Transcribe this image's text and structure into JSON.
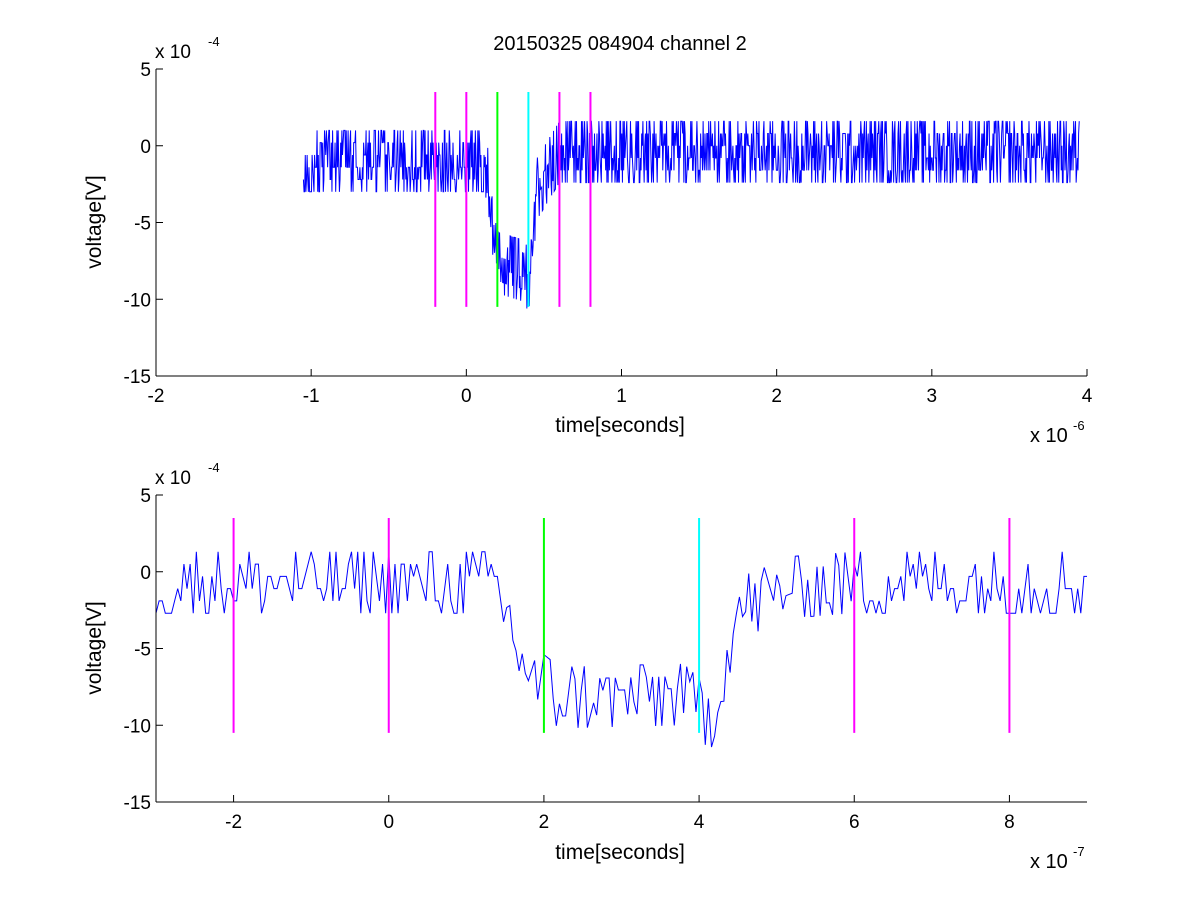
{
  "title": "20150325 084904 channel 2",
  "colors": {
    "signal": "#0000ff",
    "magenta": "#ff00ff",
    "green": "#00ff00",
    "cyan": "#00ffff",
    "axis": "#000000"
  },
  "chart_data": [
    {
      "type": "line",
      "title": "20150325 084904 channel 2",
      "xlabel": "time[seconds]",
      "ylabel": "voltage[V]",
      "x_scale_label": "x 10",
      "x_scale_exp": "-6",
      "y_scale_label": "x 10",
      "y_scale_exp": "-4",
      "x_unit": 1e-06,
      "y_unit": 0.0001,
      "xlim": [
        -2e-06,
        4e-06
      ],
      "ylim": [
        -0.0015,
        0.0005
      ],
      "x_ticks": [
        -2e-06,
        -1e-06,
        0,
        1e-06,
        2e-06,
        3e-06,
        4e-06
      ],
      "x_tick_labels": [
        "-2",
        "-1",
        "0",
        "1",
        "2",
        "3",
        "4"
      ],
      "y_ticks": [
        -0.0015,
        -0.001,
        -0.0005,
        0,
        0.0005
      ],
      "y_tick_labels": [
        "-15",
        "-10",
        "-5",
        "0",
        "5"
      ],
      "grid": false,
      "series": [
        {
          "color": "#0000ff",
          "x_start": -1.05e-06,
          "x_end": 3.95e-06,
          "key_points_x": [
            -1.05e-06,
            1.2e-07,
            1.5e-07,
            1.7e-07,
            2e-07,
            3.8e-07,
            4.1e-07,
            4.5e-07,
            6e-07,
            1e-06,
            3.95e-06
          ],
          "key_points_y": [
            -6e-05,
            -6e-05,
            -0.00025,
            -0.00055,
            -0.00072,
            -0.00078,
            -0.0009,
            -0.00025,
            0,
            0,
            0
          ]
        }
      ],
      "markers": [
        {
          "x": -2e-07,
          "y0": -0.00105,
          "y1": 0.00035,
          "color": "#ff00ff"
        },
        {
          "x": 0,
          "y0": -0.00105,
          "y1": 0.00035,
          "color": "#ff00ff"
        },
        {
          "x": 2e-07,
          "y0": -0.00105,
          "y1": 0.00035,
          "color": "#00ff00"
        },
        {
          "x": 4e-07,
          "y0": -0.00105,
          "y1": 0.00035,
          "color": "#00ffff"
        },
        {
          "x": 6e-07,
          "y0": -0.00105,
          "y1": 0.00035,
          "color": "#ff00ff"
        },
        {
          "x": 8e-07,
          "y0": -0.00105,
          "y1": 0.00035,
          "color": "#ff00ff"
        }
      ]
    },
    {
      "type": "line",
      "title": "",
      "xlabel": "time[seconds]",
      "ylabel": "voltage[V]",
      "x_scale_label": "x 10",
      "x_scale_exp": "-7",
      "y_scale_label": "x 10",
      "y_scale_exp": "-4",
      "x_unit": 1e-07,
      "y_unit": 0.0001,
      "xlim": [
        -3e-07,
        9e-07
      ],
      "ylim": [
        -0.0015,
        0.0005
      ],
      "x_ticks": [
        -2e-07,
        0,
        2e-07,
        4e-07,
        6e-07,
        8e-07
      ],
      "x_tick_labels": [
        "-2",
        "0",
        "2",
        "4",
        "6",
        "8"
      ],
      "y_ticks": [
        -0.0015,
        -0.001,
        -0.0005,
        0,
        0.0005
      ],
      "y_tick_labels": [
        "-15",
        "-10",
        "-5",
        "0",
        "5"
      ],
      "grid": false,
      "series": [
        {
          "color": "#0000ff",
          "x_start": -3e-07,
          "x_end": 9e-07,
          "key_points_x": [
            -3e-07,
            1.4e-07,
            1.5e-07,
            1.65e-07,
            1.8e-07,
            2e-07,
            2.2e-07,
            3.8e-07,
            4.15e-07,
            4.3e-07,
            4.45e-07,
            4.6e-07,
            5.2e-07,
            6e-07,
            9e-07
          ],
          "key_points_y": [
            -3e-05,
            -3e-05,
            -0.0002,
            -0.00045,
            -0.00063,
            -0.0007,
            -0.00078,
            -0.00076,
            -0.00092,
            -0.00065,
            -0.0003,
            -0.00018,
            -6e-05,
            -3e-05,
            -3e-05
          ]
        }
      ],
      "markers": [
        {
          "x": -2e-07,
          "y0": -0.00105,
          "y1": 0.00035,
          "color": "#ff00ff"
        },
        {
          "x": 0,
          "y0": -0.00105,
          "y1": 0.00035,
          "color": "#ff00ff"
        },
        {
          "x": 2e-07,
          "y0": -0.00105,
          "y1": 0.00035,
          "color": "#00ff00"
        },
        {
          "x": 4e-07,
          "y0": -0.00105,
          "y1": 0.00035,
          "color": "#00ffff"
        },
        {
          "x": 6e-07,
          "y0": -0.00105,
          "y1": 0.00035,
          "color": "#ff00ff"
        },
        {
          "x": 8e-07,
          "y0": -0.00105,
          "y1": 0.00035,
          "color": "#ff00ff"
        }
      ]
    }
  ]
}
